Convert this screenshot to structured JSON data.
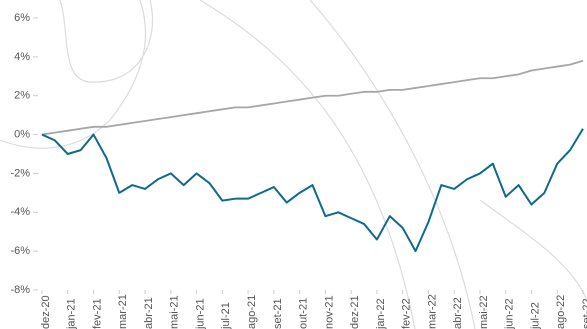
{
  "chart_data": {
    "type": "line",
    "x": [
      0,
      0.5,
      1,
      1.5,
      2,
      2.5,
      3,
      3.5,
      4,
      4.5,
      5,
      5.5,
      6,
      6.5,
      7,
      7.5,
      8,
      8.5,
      9,
      9.5,
      10,
      10.5,
      11,
      11.5,
      12,
      12.5,
      13,
      13.5,
      14,
      14.5,
      15,
      15.5,
      16,
      16.5,
      17,
      17.5,
      18,
      18.5,
      19,
      19.5,
      20,
      20.5,
      21
    ],
    "series": [
      {
        "color": "#0f6a8e",
        "values": [
          0,
          -0.3,
          -1.0,
          -0.8,
          0,
          -1.2,
          -3.0,
          -2.6,
          -2.8,
          -2.3,
          -2.0,
          -2.6,
          -2.0,
          -2.5,
          -3.4,
          -3.3,
          -3.3,
          -3.0,
          -2.7,
          -3.5,
          -3.0,
          -2.6,
          -4.2,
          -4.0,
          -4.3,
          -4.6,
          -5.4,
          -4.2,
          -4.8,
          -6.0,
          -4.5,
          -2.6,
          -2.8,
          -2.3,
          -2.0,
          -1.5,
          -3.2,
          -2.6,
          -3.6,
          -3.0,
          -1.5,
          -0.8,
          0.3
        ]
      },
      {
        "color": "#a6a6a6",
        "values": [
          0,
          0.1,
          0.2,
          0.3,
          0.4,
          0.4,
          0.5,
          0.6,
          0.7,
          0.8,
          0.9,
          1.0,
          1.1,
          1.2,
          1.3,
          1.4,
          1.4,
          1.5,
          1.6,
          1.7,
          1.8,
          1.9,
          2.0,
          2.0,
          2.1,
          2.2,
          2.2,
          2.3,
          2.3,
          2.4,
          2.5,
          2.6,
          2.7,
          2.8,
          2.9,
          2.9,
          3.0,
          3.1,
          3.3,
          3.4,
          3.5,
          3.6,
          3.8
        ]
      }
    ],
    "xlim": [
      0,
      21
    ],
    "xticks": [
      {
        "value": 0,
        "label": "dez-20"
      },
      {
        "value": 1,
        "label": "jan-21"
      },
      {
        "value": 2,
        "label": "fev-21"
      },
      {
        "value": 3,
        "label": "mar-21"
      },
      {
        "value": 4,
        "label": "abr-21"
      },
      {
        "value": 5,
        "label": "mai-21"
      },
      {
        "value": 6,
        "label": "jun-21"
      },
      {
        "value": 7,
        "label": "jul-21"
      },
      {
        "value": 8,
        "label": "ago-21"
      },
      {
        "value": 9,
        "label": "set-21"
      },
      {
        "value": 10,
        "label": "out-21"
      },
      {
        "value": 11,
        "label": "nov-21"
      },
      {
        "value": 12,
        "label": "dez-21"
      },
      {
        "value": 13,
        "label": "jan-22"
      },
      {
        "value": 14,
        "label": "fev-22"
      },
      {
        "value": 15,
        "label": "mar-22"
      },
      {
        "value": 16,
        "label": "abr-22"
      },
      {
        "value": 17,
        "label": "mai-22"
      },
      {
        "value": 18,
        "label": "jun-22"
      },
      {
        "value": 19,
        "label": "jul-22"
      },
      {
        "value": 20,
        "label": "ago-22"
      },
      {
        "value": 21,
        "label": "set-22"
      }
    ],
    "ylim": [
      -8,
      6
    ],
    "yticks": [
      {
        "value": -8,
        "label": "-8%"
      },
      {
        "value": -6,
        "label": "-6%"
      },
      {
        "value": -4,
        "label": "-4%"
      },
      {
        "value": -2,
        "label": "-2%"
      },
      {
        "value": 0,
        "label": "0%"
      },
      {
        "value": 2,
        "label": "2%"
      },
      {
        "value": 4,
        "label": "4%"
      },
      {
        "value": 6,
        "label": "6%"
      }
    ]
  }
}
